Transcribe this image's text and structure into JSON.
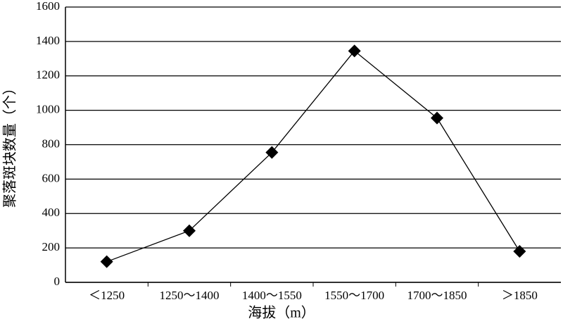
{
  "chart_data": {
    "type": "line",
    "categories": [
      "＜1250",
      "1250～1400",
      "1400～1550",
      "1550～1700",
      "1700～1850",
      "＞1850"
    ],
    "values": [
      120,
      300,
      755,
      1345,
      955,
      180
    ],
    "color": "#000000",
    "xlabel": "海拔（m）",
    "ylabel": "聚落斑块数量（个）",
    "ylim": [
      0,
      1600
    ],
    "yticks": [
      0,
      200,
      400,
      600,
      800,
      1000,
      1200,
      1400,
      1600
    ],
    "grid": true
  }
}
